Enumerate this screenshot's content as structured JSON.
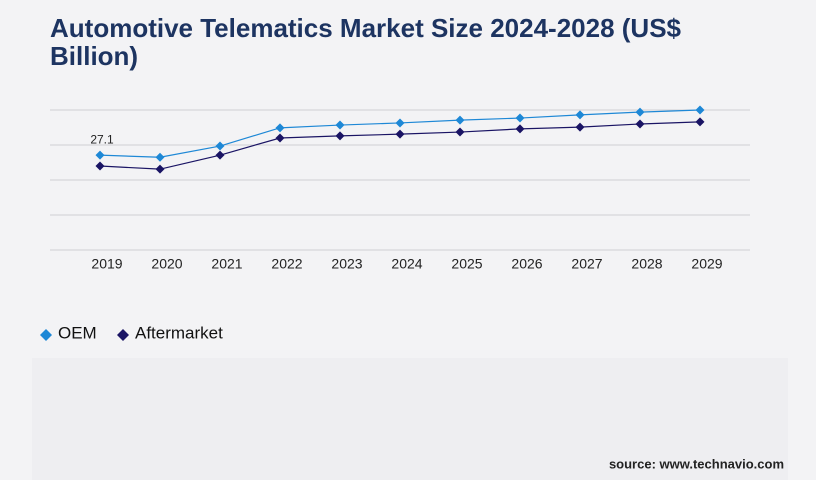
{
  "chart_data": {
    "type": "line",
    "title": "Automotive Telematics Market Size 2024-2028 (US$ Billion)",
    "categories": [
      "2019",
      "2020",
      "2021",
      "2022",
      "2023",
      "2024",
      "2025",
      "2026",
      "2027",
      "2028",
      "2029"
    ],
    "series": [
      {
        "name": "OEM",
        "color": "#1e88d6",
        "values": [
          27.1,
          26.5,
          29.7,
          34.9,
          35.7,
          36.3,
          37.1,
          37.7,
          38.6,
          39.4,
          40.0
        ],
        "value_labels": [
          "27.1",
          null,
          null,
          null,
          null,
          null,
          null,
          null,
          null,
          null,
          null
        ]
      },
      {
        "name": "Aftermarket",
        "color": "#1a1464",
        "values": [
          24.0,
          23.1,
          27.1,
          32.0,
          32.6,
          33.1,
          33.7,
          34.6,
          35.1,
          36.0,
          36.6
        ]
      }
    ],
    "ylim": [
      0,
      40
    ],
    "yticks": [
      0,
      10,
      20,
      30,
      40
    ],
    "grid": true,
    "source": "source: www.technavio.com"
  }
}
